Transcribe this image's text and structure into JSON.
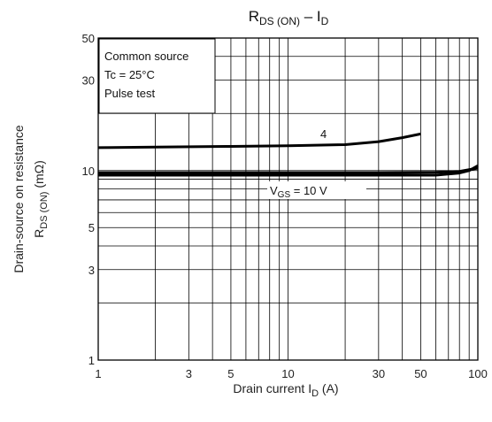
{
  "chart_data": {
    "type": "line",
    "title": {
      "main": "R",
      "main_sub": "DS (ON)",
      "dash": " – I",
      "dash_sub": "D"
    },
    "x_axis": {
      "scale": "log",
      "range": [
        1,
        100
      ],
      "tick_labels": [
        {
          "value": 1,
          "label": "1"
        },
        {
          "value": 3,
          "label": "3"
        },
        {
          "value": 5,
          "label": "5"
        },
        {
          "value": 10,
          "label": "10"
        },
        {
          "value": 30,
          "label": "30"
        },
        {
          "value": 50,
          "label": "50"
        },
        {
          "value": 100,
          "label": "100"
        }
      ],
      "label": {
        "text": "Drain current   I",
        "sub": "D",
        "unit": "   (A)"
      }
    },
    "y_axis": {
      "scale": "log",
      "range": [
        1,
        50
      ],
      "tick_labels": [
        {
          "value": 1,
          "label": "1"
        },
        {
          "value": 3,
          "label": "3"
        },
        {
          "value": 5,
          "label": "5"
        },
        {
          "value": 10,
          "label": "10"
        },
        {
          "value": 30,
          "label": "30"
        },
        {
          "value": 50,
          "label": "50"
        }
      ],
      "label_line1": "Drain-source on resistance",
      "label_line2": {
        "text": "R",
        "sub": "DS (ON)",
        "unit": "   (mΩ)"
      }
    },
    "grid": true,
    "conditions": [
      "Common source",
      "Tc = 25°C",
      "Pulse test"
    ],
    "series": [
      {
        "name": "4",
        "points": [
          [
            1,
            13.2
          ],
          [
            2,
            13.3
          ],
          [
            5,
            13.4
          ],
          [
            10,
            13.5
          ],
          [
            20,
            13.7
          ],
          [
            30,
            14.2
          ],
          [
            40,
            14.9
          ],
          [
            50,
            15.6
          ]
        ]
      },
      {
        "name": "V_GS = 10 V",
        "name_parts": {
          "v": "V",
          "sub": "GS",
          "rest": " = 10 V"
        },
        "points": [
          [
            1,
            9.45
          ],
          [
            5,
            9.45
          ],
          [
            10,
            9.45
          ],
          [
            30,
            9.45
          ],
          [
            60,
            9.45
          ],
          [
            80,
            9.7
          ],
          [
            90,
            10.0
          ],
          [
            100,
            10.6
          ]
        ]
      },
      {
        "name": "",
        "points": [
          [
            1,
            9.75
          ],
          [
            5,
            9.75
          ],
          [
            10,
            9.75
          ],
          [
            30,
            9.75
          ],
          [
            60,
            9.78
          ],
          [
            80,
            9.9
          ],
          [
            100,
            10.3
          ]
        ]
      }
    ]
  }
}
